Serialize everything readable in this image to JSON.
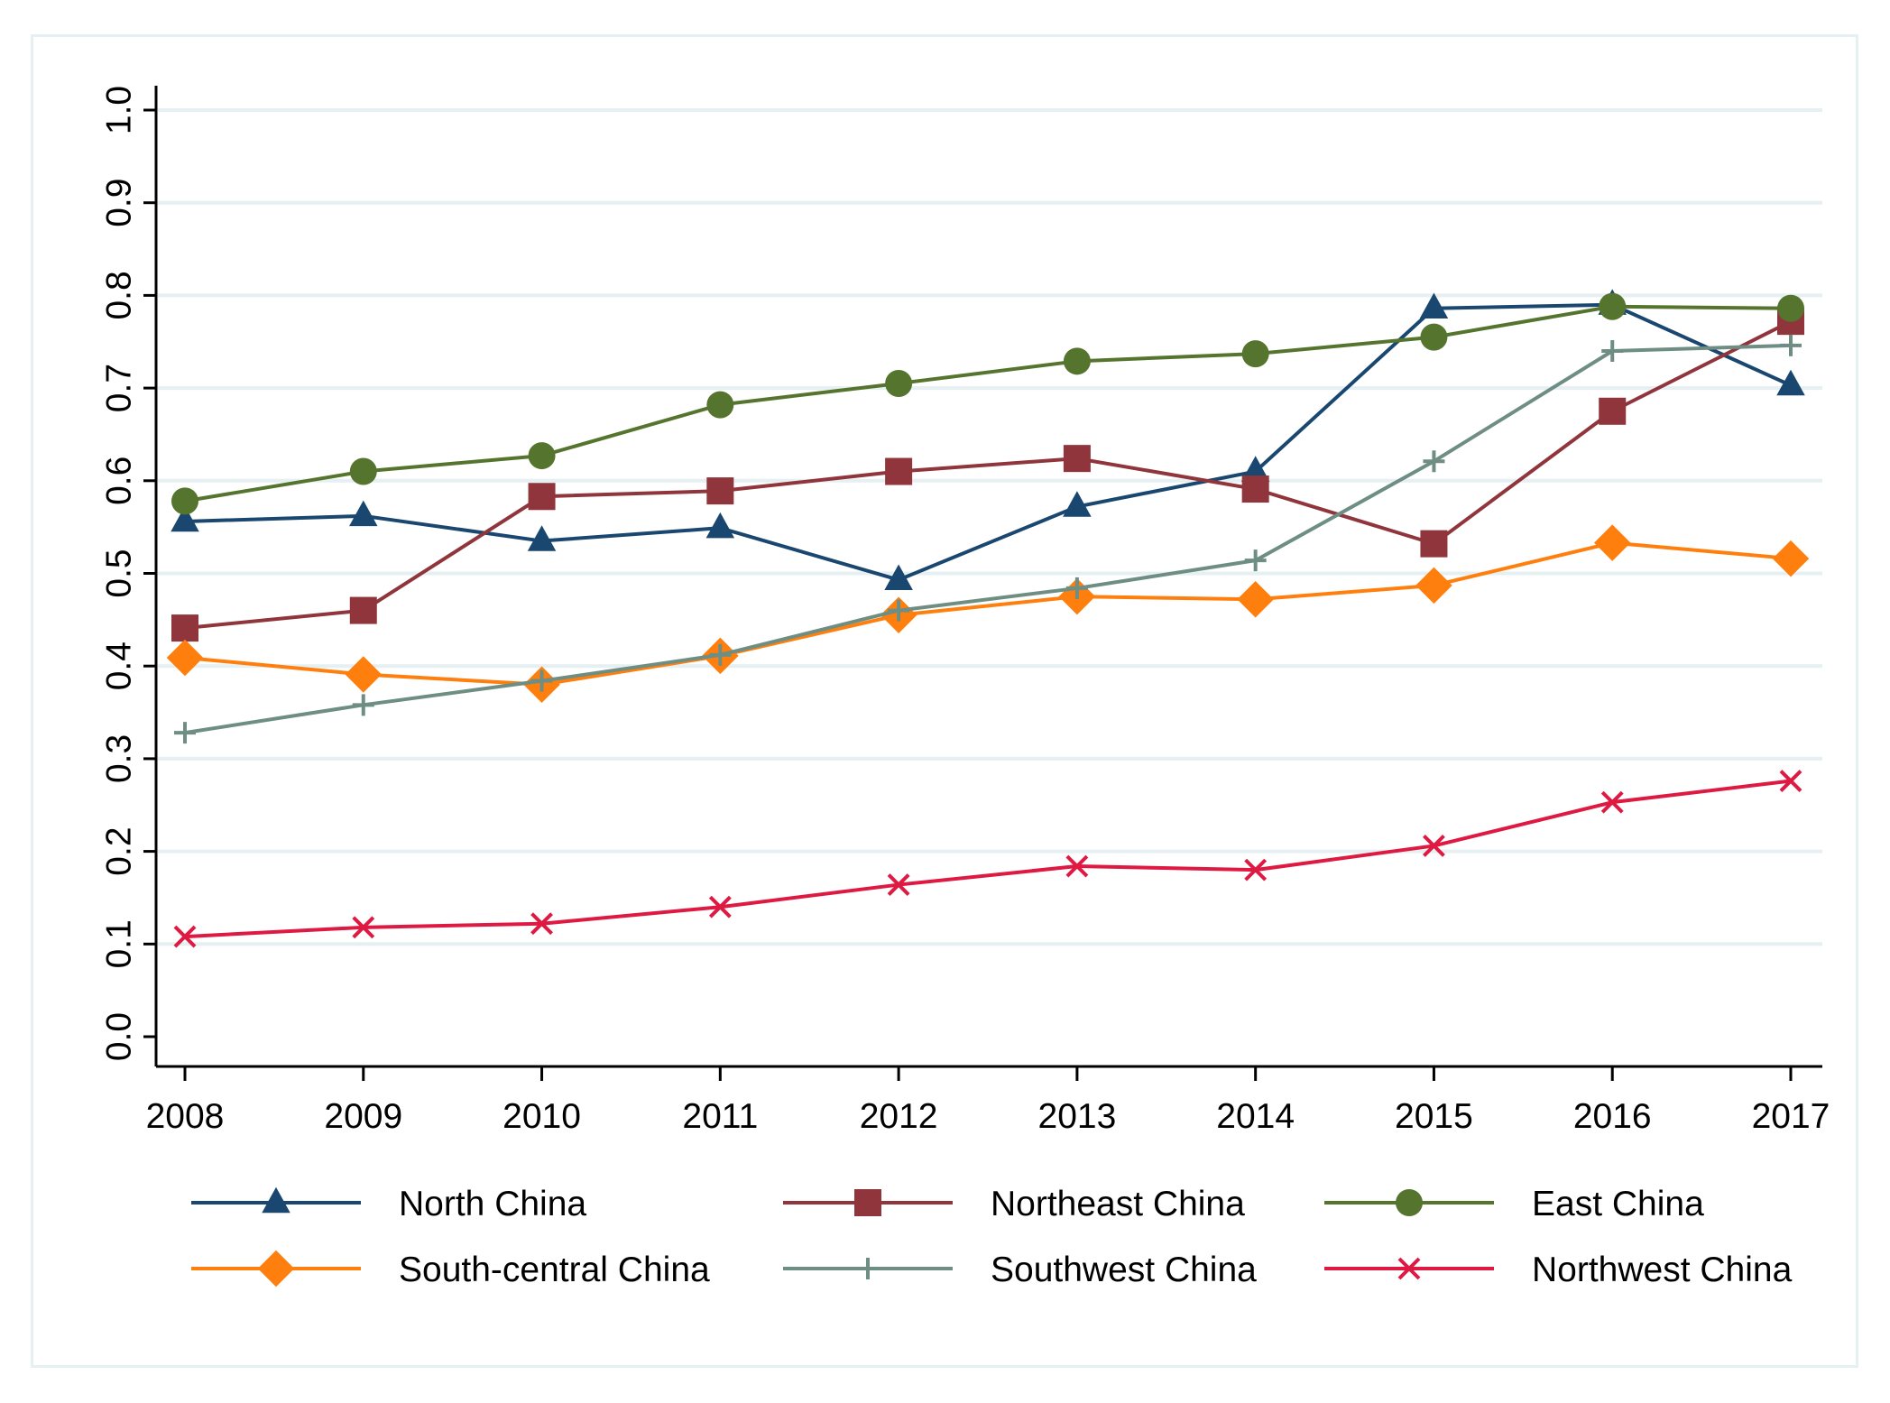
{
  "chart_data": {
    "type": "line",
    "title": "",
    "xlabel": "",
    "ylabel": "",
    "x": [
      2008,
      2009,
      2010,
      2011,
      2012,
      2013,
      2014,
      2015,
      2016,
      2017
    ],
    "x_tick_labels": [
      "2008",
      "2009",
      "2010",
      "2011",
      "2012",
      "2013",
      "2014",
      "2015",
      "2016",
      "2017"
    ],
    "ylim": [
      0.0,
      1.0
    ],
    "y_ticks": [
      0.0,
      0.1,
      0.2,
      0.3,
      0.4,
      0.5,
      0.6,
      0.7,
      0.8,
      0.9,
      1.0
    ],
    "y_tick_labels": [
      "0.0",
      "0.1",
      "0.2",
      "0.3",
      "0.4",
      "0.5",
      "0.6",
      "0.7",
      "0.8",
      "0.9",
      "1.0"
    ],
    "grid": true,
    "legend_position": "bottom",
    "series": [
      {
        "name": "North China",
        "color": "#1a476f",
        "marker": "triangle",
        "values": [
          0.556,
          0.562,
          0.535,
          0.549,
          0.493,
          0.572,
          0.61,
          0.786,
          0.79,
          0.703
        ]
      },
      {
        "name": "Northeast China",
        "color": "#90353b",
        "marker": "square",
        "values": [
          0.441,
          0.46,
          0.583,
          0.589,
          0.61,
          0.624,
          0.591,
          0.532,
          0.675,
          0.772
        ]
      },
      {
        "name": "East China",
        "color": "#55752f",
        "marker": "circle",
        "values": [
          0.578,
          0.61,
          0.627,
          0.682,
          0.705,
          0.729,
          0.737,
          0.755,
          0.788,
          0.786
        ]
      },
      {
        "name": "South-central China",
        "color": "#ff7f0e",
        "marker": "diamond",
        "values": [
          0.409,
          0.391,
          0.38,
          0.411,
          0.455,
          0.475,
          0.472,
          0.487,
          0.533,
          0.516
        ]
      },
      {
        "name": "Southwest China",
        "color": "#6e8e84",
        "marker": "plus",
        "values": [
          0.328,
          0.358,
          0.384,
          0.412,
          0.46,
          0.484,
          0.514,
          0.621,
          0.74,
          0.746
        ]
      },
      {
        "name": "Northwest China",
        "color": "#de1a43",
        "marker": "x",
        "values": [
          0.108,
          0.118,
          0.122,
          0.14,
          0.164,
          0.184,
          0.18,
          0.206,
          0.253,
          0.276
        ]
      }
    ]
  }
}
